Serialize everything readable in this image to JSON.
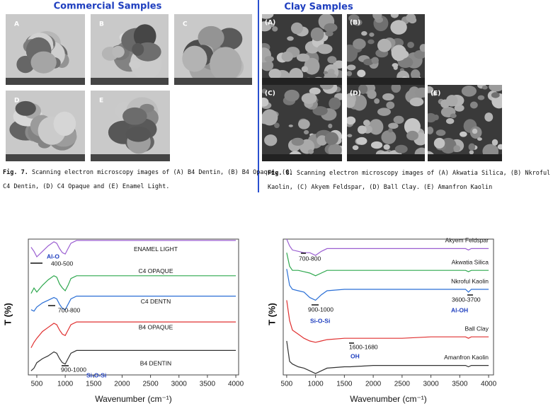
{
  "panels": [
    {
      "heading": "Commercial Samples",
      "labels": [
        "A",
        "B",
        "C",
        "D",
        "E"
      ],
      "caption": {
        "label": "Fig. 7.",
        "lines": [
          "Scanning electron microscopy images of (A) B4 Dentin, (B) B4 Opaque, (C)",
          "C4 Dentin, (D) C4 Opaque and (E) Enamel Light."
        ]
      }
    },
    {
      "heading": "Clay Samples",
      "labels": [
        "(A)",
        "(B)",
        "(C)",
        "(D)",
        "(E)"
      ],
      "caption": {
        "label": "Fig. 8.",
        "lines": [
          "Scanning electron microscopy images of (A) Akwatia Silica, (B) Nkroful",
          "Kaolin, (C) Akyem Feldspar, (D) Ball Clay. (E) Amanfron Kaolin"
        ]
      }
    }
  ],
  "chart_data": [
    {
      "type": "line",
      "x_label": "Wavenumber (cm⁻¹)",
      "y_label": "T (%)",
      "xlim": [
        351,
        4049
      ],
      "ylim": [
        0,
        100
      ],
      "xticks": [
        500,
        1000,
        1500,
        2000,
        2500,
        3000,
        3500,
        4000
      ],
      "x": [
        400,
        450,
        500,
        600,
        700,
        800,
        850,
        900,
        950,
        1000,
        1050,
        1100,
        1200,
        1300,
        1500,
        2000,
        2500,
        3000,
        3500,
        4000
      ],
      "series": [
        {
          "name": "ENAMEL LIGHT",
          "color": "#9b5fd1",
          "values": [
            94,
            91,
            87,
            91,
            95,
            98,
            97,
            93,
            90,
            89,
            93,
            97,
            99,
            99,
            99,
            99,
            99,
            99,
            99,
            99
          ]
        },
        {
          "name": "C4 OPAQUE",
          "color": "#2ea84e",
          "values": [
            60,
            64,
            61,
            66,
            70,
            73,
            72,
            67,
            64,
            62,
            66,
            71,
            73,
            73,
            73,
            73,
            73,
            73,
            73,
            73
          ]
        },
        {
          "name": "C4 DENTN",
          "color": "#2a6fd6",
          "values": [
            48,
            47,
            50,
            53,
            55,
            57,
            56,
            52,
            49,
            48,
            52,
            56,
            58,
            58,
            58,
            58,
            58,
            58,
            58,
            58
          ]
        },
        {
          "name": "B4 OPAQUE",
          "color": "#e03030",
          "values": [
            20,
            24,
            27,
            32,
            35,
            38,
            37,
            33,
            30,
            29,
            33,
            37,
            39,
            39,
            39,
            39,
            39,
            39,
            39,
            39
          ]
        },
        {
          "name": "B4 DENTIN",
          "color": "#333333",
          "values": [
            3,
            5,
            9,
            12,
            14,
            17,
            16,
            12,
            9,
            8,
            12,
            16,
            18,
            18,
            18,
            18,
            18,
            18,
            18,
            18
          ]
        }
      ],
      "annotations": [
        "Al-O",
        "400-500",
        "700-800",
        "900-1000",
        "Si-O-Si"
      ]
    },
    {
      "type": "line",
      "x_label": "Wavenumber (cm⁻¹)",
      "y_label": "T (%)",
      "xlim": [
        440,
        4085
      ],
      "ylim": [
        0,
        100
      ],
      "xticks": [
        500,
        1000,
        1500,
        2000,
        2500,
        3000,
        3500,
        4000
      ],
      "x": [
        500,
        550,
        600,
        700,
        800,
        900,
        1000,
        1100,
        1200,
        1500,
        1600,
        2000,
        2500,
        3000,
        3500,
        3600,
        3650,
        3700,
        4000
      ],
      "series": [
        {
          "name": "Akyem Feldspar",
          "color": "#9b5fd1",
          "values": [
            100,
            95,
            92,
            91,
            90,
            90,
            88,
            91,
            93,
            93,
            93,
            93,
            93,
            93,
            93,
            93,
            92,
            93,
            93
          ]
        },
        {
          "name": "Akwatia Silica",
          "color": "#2ea84e",
          "values": [
            90,
            80,
            77,
            77,
            76,
            75,
            73,
            75,
            77,
            77,
            77,
            77,
            77,
            77,
            77,
            77,
            76,
            77,
            77
          ]
        },
        {
          "name": "Nkroful Kaolin",
          "color": "#2a6fd6",
          "values": [
            78,
            66,
            63,
            62,
            61,
            57,
            55,
            59,
            62,
            63,
            63,
            63,
            63,
            63,
            63,
            63,
            61,
            63,
            63
          ]
        },
        {
          "name": "Ball Clay",
          "color": "#e03030",
          "values": [
            55,
            40,
            33,
            30,
            27,
            25,
            24,
            25,
            26,
            27,
            27,
            27,
            27,
            28,
            28,
            28,
            27,
            28,
            28
          ]
        },
        {
          "name": "Amanfron Kaolin",
          "color": "#333333",
          "values": [
            25,
            10,
            8,
            6,
            5,
            3,
            1,
            3,
            5,
            6,
            6,
            7,
            7,
            7,
            7,
            7,
            6,
            7,
            7
          ]
        }
      ],
      "annotations": [
        "700-800",
        "900-1000",
        "Si-O-Si",
        "1600-1680",
        "OH",
        "3600-3700",
        "Al-OH"
      ]
    }
  ]
}
